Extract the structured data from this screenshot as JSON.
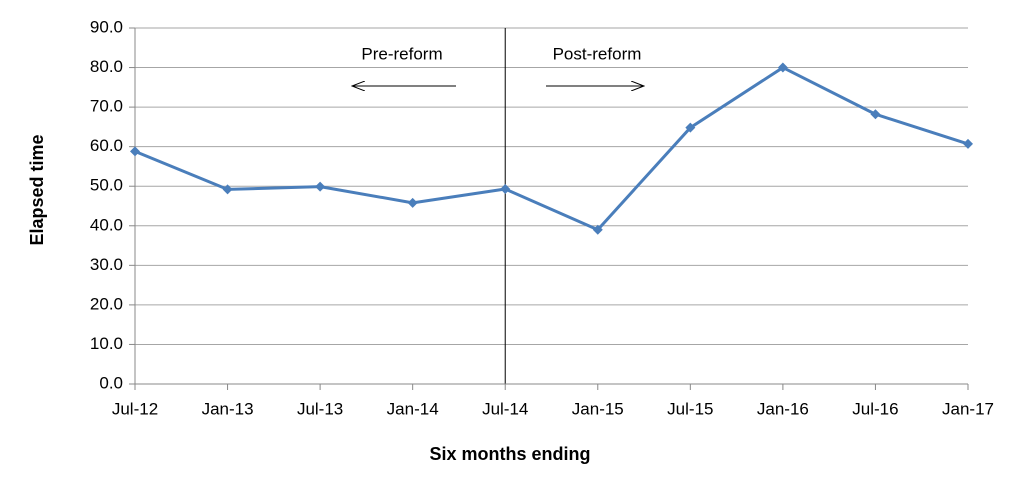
{
  "chart_data": {
    "type": "line",
    "x_label": "Six months ending",
    "y_label": "Elapsed time",
    "annotations": [
      "Pre-reform",
      "Post-reform"
    ],
    "categories": [
      "Jul-12",
      "Jan-13",
      "Jul-13",
      "Jan-14",
      "Jul-14",
      "Jan-15",
      "Jul-15",
      "Jan-16",
      "Jul-16",
      "Jan-17"
    ],
    "values": [
      58.8,
      49.2,
      49.9,
      45.8,
      49.3,
      39.0,
      64.8,
      80.0,
      68.2,
      60.7
    ],
    "color": "#4a7ebb",
    "ylim": [
      0,
      90
    ],
    "yticks": [
      {
        "value": 0,
        "label": "0.0"
      },
      {
        "value": 10,
        "label": "10.0"
      },
      {
        "value": 20,
        "label": "20.0"
      },
      {
        "value": 30,
        "label": "30.0"
      },
      {
        "value": 40,
        "label": "40.0"
      },
      {
        "value": 50,
        "label": "50.0"
      },
      {
        "value": 60,
        "label": "60.0"
      },
      {
        "value": 70,
        "label": "70.0"
      },
      {
        "value": 80,
        "label": "80.0"
      },
      {
        "value": 90,
        "label": "90.0"
      }
    ],
    "grid": true
  }
}
